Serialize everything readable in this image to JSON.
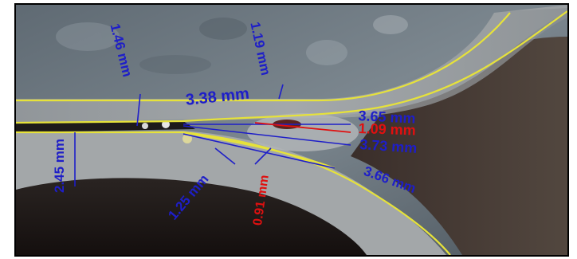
{
  "image": {
    "subject": "micrograph-weld-cross-section",
    "annotation_colors": {
      "measurement_blue": "#1e1ec8",
      "measurement_red": "#e01010",
      "boundary_yellow": "#e6e23a"
    }
  },
  "measurements": {
    "m1": "1.46 mm",
    "m2": "1.19 mm",
    "m3": "3.38 mm",
    "m4": "3.65 mm",
    "m5": "1.09 mm",
    "m6": "3.73 mm",
    "m7": "2.45 mm",
    "m8": "1.25 mm",
    "m9": "0.91 mm",
    "m10": "3.66 mm"
  }
}
